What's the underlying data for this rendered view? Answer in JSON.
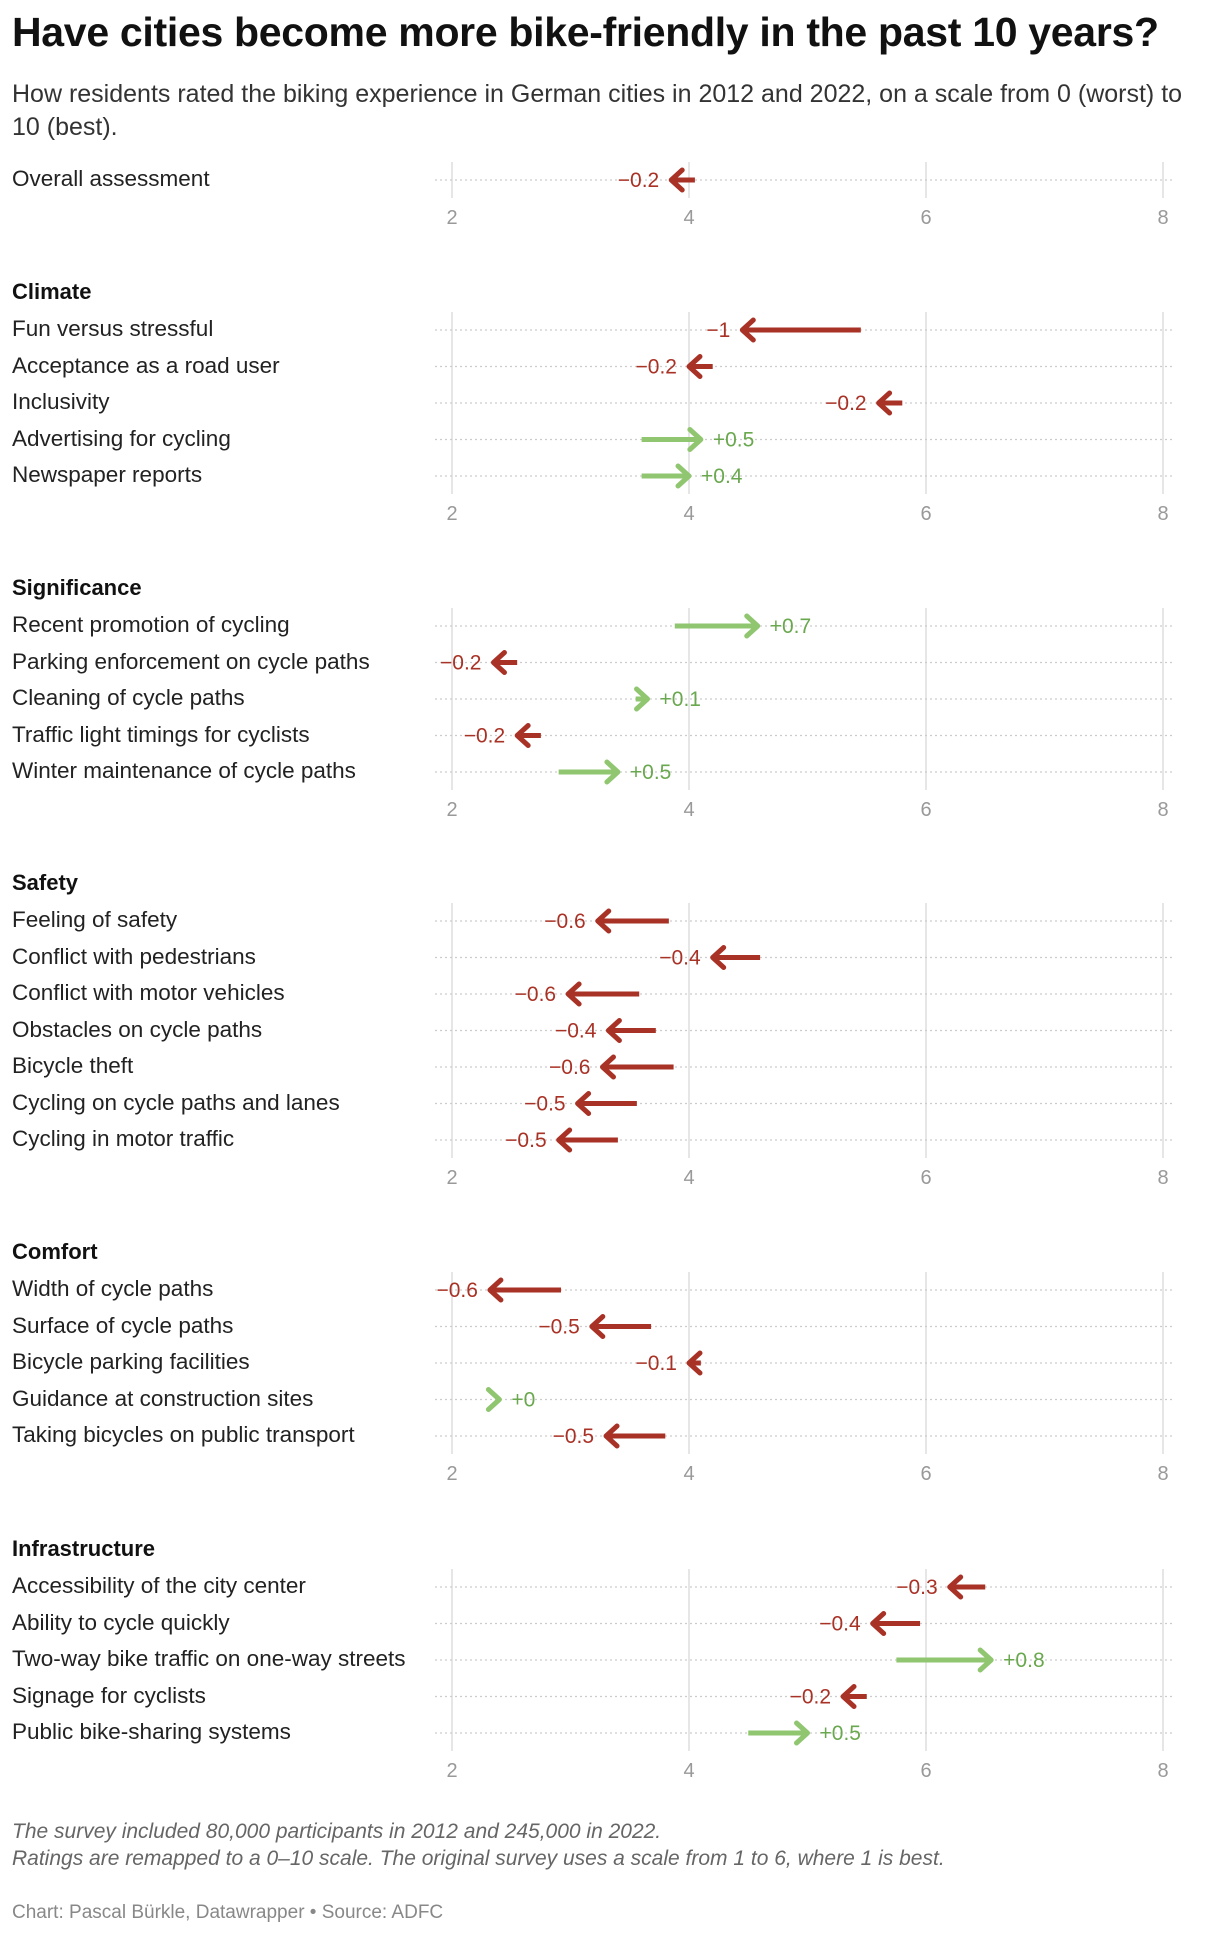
{
  "title": "Have cities become more bike-friendly in the past 10 years?",
  "subtitle": "How residents rated the biking experience in German cities in 2012 and 2022, on a scale from 0 (worst) to 10 (best).",
  "colors": {
    "decrease": "#a93226",
    "increase": "#90c670",
    "increase_text": "#6aa84f"
  },
  "chart_data": {
    "type": "arrow",
    "xlim": [
      1.7,
      8.1
    ],
    "x_ticks": [
      2,
      4,
      6,
      8
    ],
    "groups": [
      {
        "title": "",
        "name": "overall",
        "rows": [
          {
            "label": "Overall assessment",
            "from": 4.05,
            "to": 3.85,
            "change": "−0.2"
          }
        ]
      },
      {
        "title": "Climate",
        "name": "climate",
        "rows": [
          {
            "label": "Fun versus stressful",
            "from": 5.45,
            "to": 4.45,
            "change": "−1"
          },
          {
            "label": "Acceptance as a road user",
            "from": 4.2,
            "to": 4.0,
            "change": "−0.2"
          },
          {
            "label": "Inclusivity",
            "from": 5.8,
            "to": 5.6,
            "change": "−0.2"
          },
          {
            "label": "Advertising for cycling",
            "from": 3.6,
            "to": 4.1,
            "change": "+0.5"
          },
          {
            "label": "Newspaper reports",
            "from": 3.6,
            "to": 4.0,
            "change": "+0.4"
          }
        ]
      },
      {
        "title": "Significance",
        "name": "significance",
        "rows": [
          {
            "label": "Recent promotion of cycling",
            "from": 3.88,
            "to": 4.58,
            "change": "+0.7"
          },
          {
            "label": "Parking enforcement on cycle paths",
            "from": 2.55,
            "to": 2.35,
            "change": "−0.2"
          },
          {
            "label": "Cleaning of cycle paths",
            "from": 3.55,
            "to": 3.65,
            "change": "+0.1"
          },
          {
            "label": "Traffic light timings for cyclists",
            "from": 2.75,
            "to": 2.55,
            "change": "−0.2"
          },
          {
            "label": "Winter maintenance of cycle paths",
            "from": 2.9,
            "to": 3.4,
            "change": "+0.5"
          }
        ]
      },
      {
        "title": "Safety",
        "name": "safety",
        "rows": [
          {
            "label": "Feeling of safety",
            "from": 3.83,
            "to": 3.23,
            "change": "−0.6"
          },
          {
            "label": "Conflict with pedestrians",
            "from": 4.6,
            "to": 4.2,
            "change": "−0.4"
          },
          {
            "label": "Conflict with motor vehicles",
            "from": 3.58,
            "to": 2.98,
            "change": "−0.6"
          },
          {
            "label": "Obstacles on cycle paths",
            "from": 3.72,
            "to": 3.32,
            "change": "−0.4"
          },
          {
            "label": "Bicycle theft",
            "from": 3.87,
            "to": 3.27,
            "change": "−0.6"
          },
          {
            "label": "Cycling on cycle paths and lanes",
            "from": 3.56,
            "to": 3.06,
            "change": "−0.5"
          },
          {
            "label": "Cycling in motor traffic",
            "from": 3.4,
            "to": 2.9,
            "change": "−0.5"
          }
        ]
      },
      {
        "title": "Comfort",
        "name": "comfort",
        "rows": [
          {
            "label": "Width of cycle paths",
            "from": 2.92,
            "to": 2.32,
            "change": "−0.6"
          },
          {
            "label": "Surface of cycle paths",
            "from": 3.68,
            "to": 3.18,
            "change": "−0.5"
          },
          {
            "label": "Bicycle parking facilities",
            "from": 4.1,
            "to": 4.0,
            "change": "−0.1"
          },
          {
            "label": "Guidance at construction sites",
            "from": 2.38,
            "to": 2.4,
            "change": "+0",
            "positive": true
          },
          {
            "label": "Taking bicycles on public transport",
            "from": 3.8,
            "to": 3.3,
            "change": "−0.5"
          }
        ]
      },
      {
        "title": "Infrastructure",
        "name": "infrastructure",
        "rows": [
          {
            "label": "Accessibility of the city center",
            "from": 6.5,
            "to": 6.2,
            "change": "−0.3"
          },
          {
            "label": "Ability to cycle quickly",
            "from": 5.95,
            "to": 5.55,
            "change": "−0.4"
          },
          {
            "label": "Two-way bike traffic on one-way streets",
            "from": 5.75,
            "to": 6.55,
            "change": "+0.8"
          },
          {
            "label": "Signage for cyclists",
            "from": 5.5,
            "to": 5.3,
            "change": "−0.2"
          },
          {
            "label": "Public bike-sharing systems",
            "from": 4.5,
            "to": 5.0,
            "change": "+0.5"
          }
        ]
      }
    ]
  },
  "notes": {
    "line1": "The survey included 80,000 participants in 2012 and 245,000 in 2022.",
    "line2": "Ratings are remapped to a 0–10 scale. The original survey uses a scale from 1 to 6, where 1 is best."
  },
  "credit": "Chart: Pascal Bürkle, Datawrapper • Source: ADFC"
}
